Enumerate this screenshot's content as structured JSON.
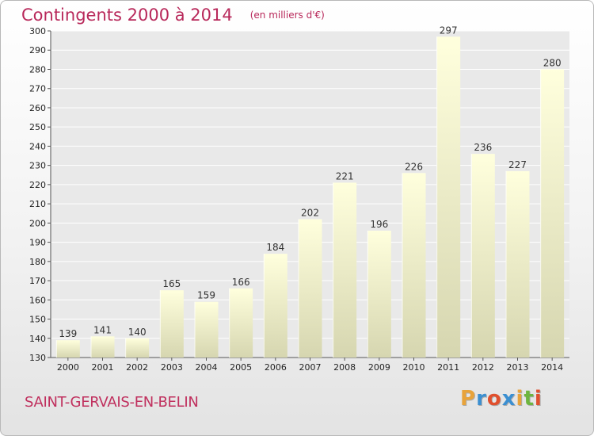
{
  "header": {
    "title": "Contingents 2000 à 2014",
    "subtitle": "(en milliers d'€)"
  },
  "footer": {
    "commune": "SAINT-GERVAIS-EN-BELIN",
    "logo_letters": [
      "P",
      "r",
      "o",
      "x",
      "i",
      "t",
      "i"
    ],
    "logo_colors": [
      "#e8a33a",
      "#3b8fd1",
      "#e0502e",
      "#3b8fd1",
      "#e8a33a",
      "#6db53f",
      "#e0502e"
    ]
  },
  "colors": {
    "bar_top": "#ffffdd",
    "bar_bottom": "#d6d6b0",
    "title": "#b8285a"
  },
  "chart_data": {
    "type": "bar",
    "title": "Contingents 2000 à 2014",
    "subtitle": "(en milliers d'€)",
    "xlabel": "",
    "ylabel": "",
    "categories": [
      "2000",
      "2001",
      "2002",
      "2003",
      "2004",
      "2005",
      "2006",
      "2007",
      "2008",
      "2009",
      "2010",
      "2011",
      "2012",
      "2013",
      "2014"
    ],
    "values": [
      139,
      141,
      140,
      165,
      159,
      166,
      184,
      202,
      221,
      196,
      226,
      297,
      236,
      227,
      280
    ],
    "ylim": [
      130,
      300
    ],
    "yticks": [
      130,
      140,
      150,
      160,
      170,
      180,
      190,
      200,
      210,
      220,
      230,
      240,
      250,
      260,
      270,
      280,
      290,
      300
    ],
    "grid": true,
    "legend": "none"
  }
}
